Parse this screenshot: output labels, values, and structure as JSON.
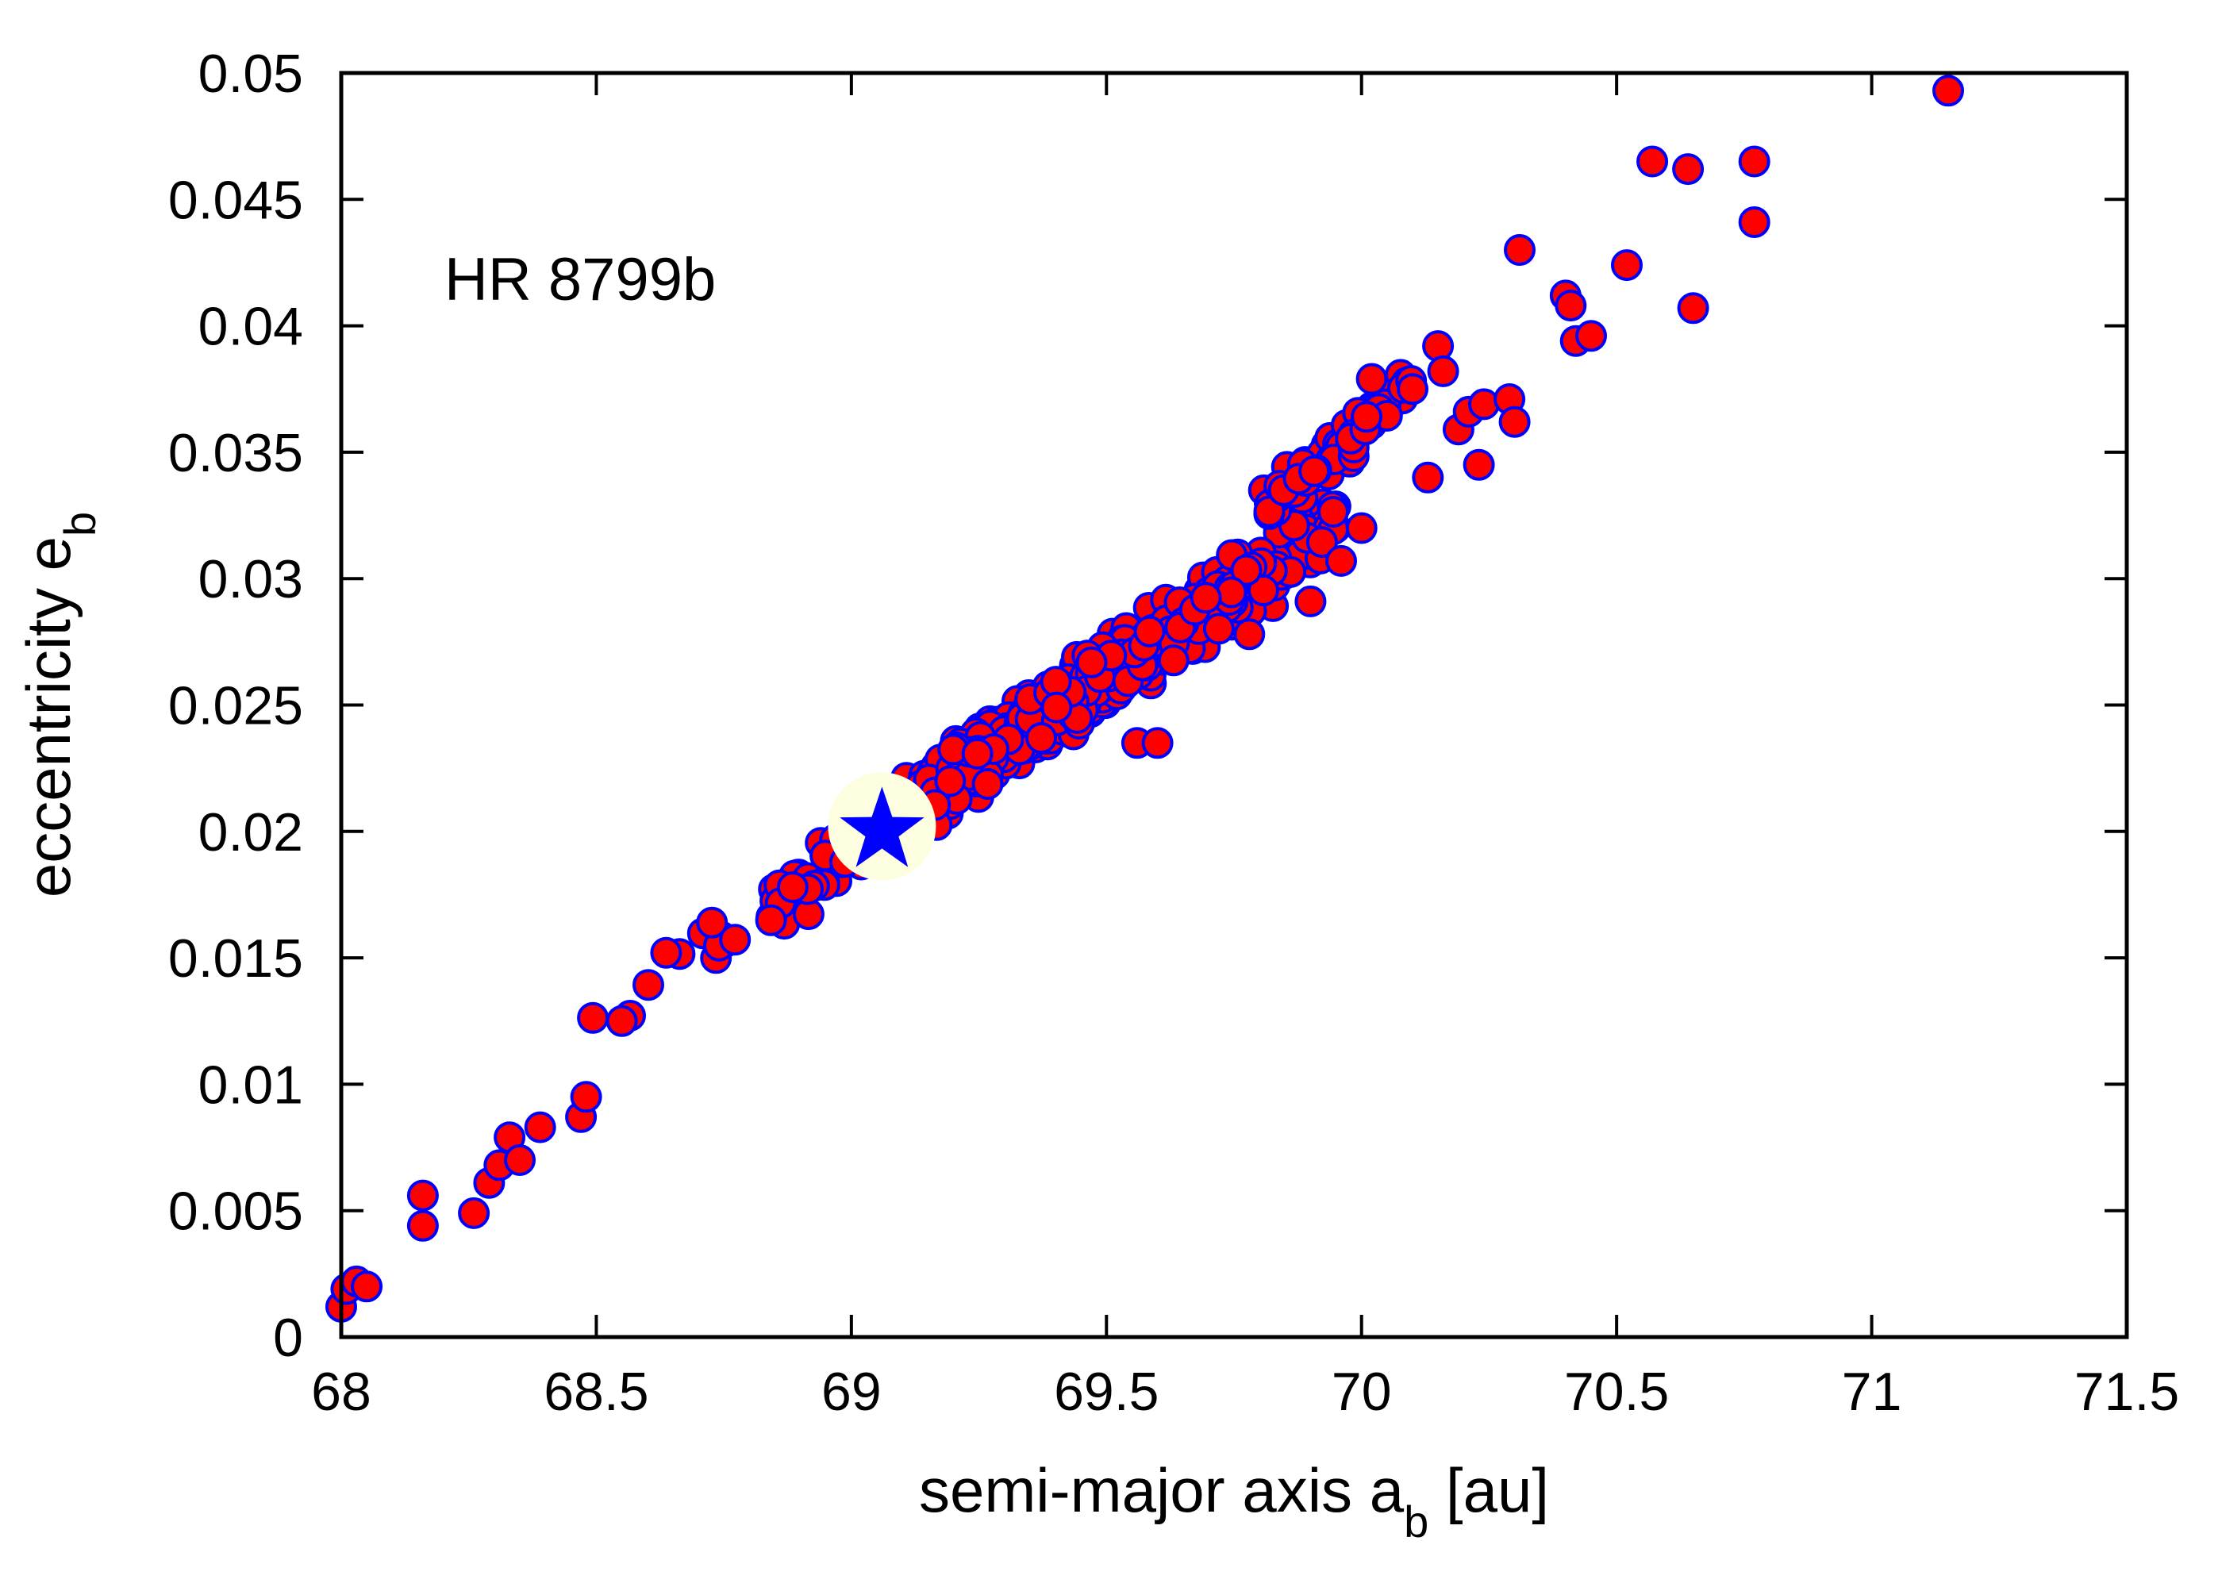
{
  "chart_data": {
    "type": "scatter",
    "xlabel": "semi-major axis a",
    "xlabel_sub": "b",
    "xlabel_suffix": " [au]",
    "ylabel": "eccentricity e",
    "ylabel_sub": "b",
    "annotation": "HR 8799b",
    "xlim": [
      68,
      71.5
    ],
    "ylim": [
      0,
      0.05
    ],
    "xticks": [
      "68",
      "68.5",
      "69",
      "69.5",
      "70",
      "70.5",
      "71",
      "71.5"
    ],
    "yticks": [
      "0",
      "0.005",
      "0.01",
      "0.015",
      "0.02",
      "0.025",
      "0.03",
      "0.035",
      "0.04",
      "0.045",
      "0.05"
    ],
    "grid": false,
    "marker_fill": "#ff0000",
    "marker_edge": "#0000ff",
    "highlight": {
      "x": 69.06,
      "y": 0.0202,
      "marker": "star",
      "color": "#0000ff",
      "background": "#fdfde0"
    },
    "outliers": [
      [
        68.0,
        0.0012
      ],
      [
        68.01,
        0.0019
      ],
      [
        68.03,
        0.0022
      ],
      [
        68.05,
        0.002
      ],
      [
        68.16,
        0.0056
      ],
      [
        68.16,
        0.0044
      ],
      [
        68.26,
        0.0049
      ],
      [
        68.29,
        0.0061
      ],
      [
        68.31,
        0.0068
      ],
      [
        68.33,
        0.0079
      ],
      [
        68.35,
        0.007
      ],
      [
        68.39,
        0.0083
      ],
      [
        68.47,
        0.0087
      ],
      [
        68.48,
        0.0095
      ],
      [
        68.55,
        0.0125
      ],
      [
        69.56,
        0.0235
      ],
      [
        69.6,
        0.0235
      ],
      [
        69.78,
        0.0278
      ],
      [
        69.9,
        0.0291
      ],
      [
        69.96,
        0.0307
      ],
      [
        70.0,
        0.032
      ],
      [
        70.02,
        0.0379
      ],
      [
        70.01,
        0.0364
      ],
      [
        70.1,
        0.0375
      ],
      [
        70.13,
        0.034
      ],
      [
        70.15,
        0.0392
      ],
      [
        70.16,
        0.0382
      ],
      [
        70.19,
        0.0359
      ],
      [
        70.21,
        0.0366
      ],
      [
        70.23,
        0.0345
      ],
      [
        70.24,
        0.0369
      ],
      [
        70.29,
        0.0371
      ],
      [
        70.3,
        0.0362
      ],
      [
        70.31,
        0.043
      ],
      [
        70.4,
        0.0412
      ],
      [
        70.41,
        0.0408
      ],
      [
        70.42,
        0.0394
      ],
      [
        70.45,
        0.0396
      ],
      [
        70.52,
        0.0424
      ],
      [
        70.57,
        0.0465
      ],
      [
        70.64,
        0.0462
      ],
      [
        70.65,
        0.0407
      ],
      [
        70.77,
        0.0465
      ],
      [
        70.77,
        0.0441
      ],
      [
        71.15,
        0.0493
      ]
    ],
    "band": {
      "x_start": 68.48,
      "x_end": 69.95,
      "slope": 0.01364,
      "anchor_x": 69.06,
      "anchor_y": 0.0202,
      "spread": 0.0012,
      "count": 720
    },
    "upper_branch": {
      "x_start": 69.8,
      "x_end": 70.1,
      "slope": 0.0175,
      "anchor_x": 69.95,
      "anchor_y": 0.0352,
      "spread": 0.0008,
      "count": 60
    }
  }
}
